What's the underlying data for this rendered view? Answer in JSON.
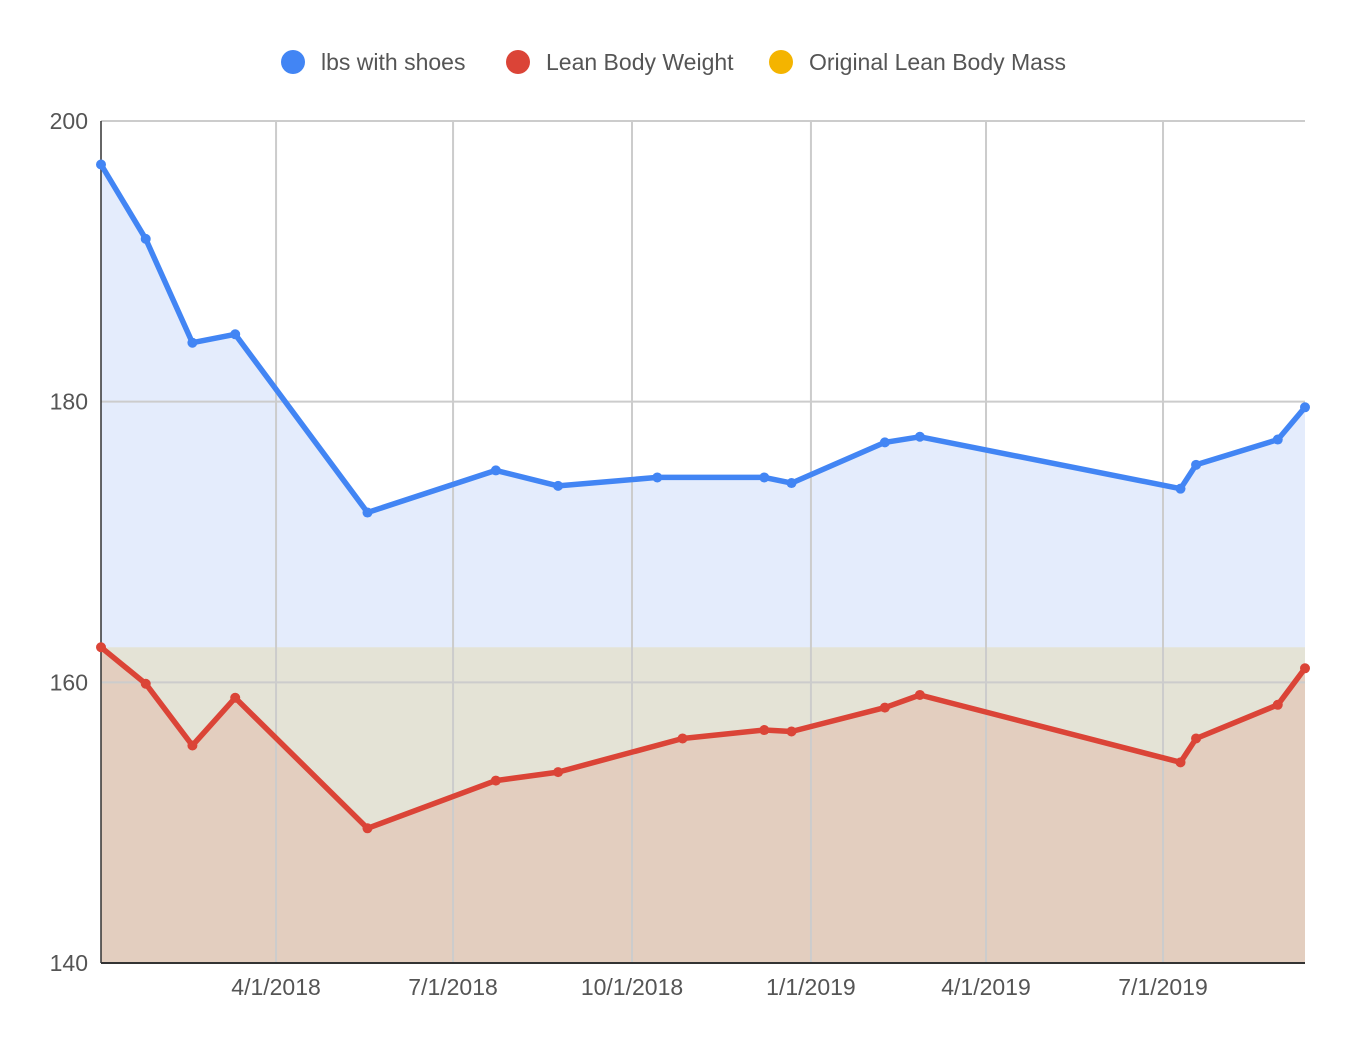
{
  "chart_data": {
    "type": "area",
    "title": "",
    "xlabel": "",
    "ylabel": "",
    "ylim": [
      140,
      200
    ],
    "xlim": [
      "2018-01-01",
      "2019-09-12"
    ],
    "grid": true,
    "legend_position": "top",
    "y_ticks": [
      "140",
      "160",
      "180",
      "200"
    ],
    "x_ticks": [
      {
        "date": "2018-04-01",
        "label": "4/1/2018"
      },
      {
        "date": "2018-07-01",
        "label": "7/1/2018"
      },
      {
        "date": "2018-10-01",
        "label": "10/1/2018"
      },
      {
        "date": "2019-01-01",
        "label": "1/1/2019"
      },
      {
        "date": "2019-04-01",
        "label": "4/1/2019"
      },
      {
        "date": "2019-07-01",
        "label": "7/1/2019"
      }
    ],
    "series": [
      {
        "name": "lbs with shoes",
        "color": "#4285F4",
        "fill": "#E4ECFC",
        "points": [
          [
            "2018-01-01",
            196.9
          ],
          [
            "2018-01-24",
            191.6
          ],
          [
            "2018-02-17",
            184.2
          ],
          [
            "2018-03-11",
            184.8
          ],
          [
            "2018-05-18",
            172.1
          ],
          [
            "2018-07-23",
            175.1
          ],
          [
            "2018-08-24",
            174.0
          ],
          [
            "2018-10-14",
            174.6
          ],
          [
            "2018-12-08",
            174.6
          ],
          [
            "2018-12-22",
            174.2
          ],
          [
            "2019-02-08",
            177.1
          ],
          [
            "2019-02-26",
            177.5
          ],
          [
            "2019-07-10",
            173.8
          ],
          [
            "2019-07-18",
            175.5
          ],
          [
            "2019-08-29",
            177.3
          ],
          [
            "2019-09-12",
            179.6
          ]
        ]
      },
      {
        "name": "Lean Body Weight",
        "color": "#DB4437",
        "fill": "#E3CEBF",
        "points": [
          [
            "2018-01-01",
            162.5
          ],
          [
            "2018-01-24",
            159.9
          ],
          [
            "2018-02-17",
            155.5
          ],
          [
            "2018-03-11",
            158.9
          ],
          [
            "2018-05-18",
            149.6
          ],
          [
            "2018-07-23",
            153.0
          ],
          [
            "2018-08-24",
            153.6
          ],
          [
            "2018-10-27",
            156.0
          ],
          [
            "2018-12-08",
            156.6
          ],
          [
            "2018-12-22",
            156.5
          ],
          [
            "2019-02-08",
            158.2
          ],
          [
            "2019-02-26",
            159.1
          ],
          [
            "2019-07-10",
            154.3
          ],
          [
            "2019-07-18",
            156.0
          ],
          [
            "2019-08-29",
            158.4
          ],
          [
            "2019-09-12",
            161.0
          ]
        ]
      },
      {
        "name": "Original Lean Body Mass",
        "color": "#F4B400",
        "fill": "#E4E3D6",
        "points": [
          [
            "2018-01-01",
            162.5
          ],
          [
            "2019-09-12",
            162.5
          ]
        ]
      }
    ]
  }
}
